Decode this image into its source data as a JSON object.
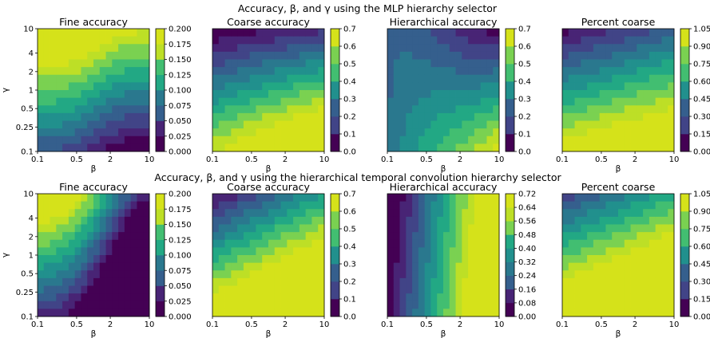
{
  "figure": {
    "row_titles": [
      "Accuracy, β, and γ using the MLP hierarchy selector",
      "Accuracy, β, and γ using the hierarchical temporal convolution hierarchy selector"
    ]
  },
  "colormap": [
    "#440154",
    "#482475",
    "#414487",
    "#355f8d",
    "#2a788e",
    "#21908d",
    "#22a884",
    "#42be71",
    "#7ad151",
    "#bddf26",
    "#d5e21a"
  ],
  "chart_data": [
    {
      "type": "heatmap",
      "row": 0,
      "col": 0,
      "title": "Fine accuracy",
      "xlabel": "β",
      "ylabel": "γ",
      "x_ticks": [
        "0.1",
        "0.5",
        "2",
        "10"
      ],
      "y_ticks": [
        "0.1",
        "0.25",
        "0.5",
        "1",
        "2",
        "4",
        "10"
      ],
      "x_scale": "log",
      "y_scale": "log",
      "xlim": [
        0.1,
        10
      ],
      "ylim": [
        0.1,
        10
      ],
      "colorbar": {
        "min": 0,
        "max": 0.2,
        "ticks": [
          "0.000",
          "0.025",
          "0.050",
          "0.075",
          "0.100",
          "0.125",
          "0.150",
          "0.175",
          "0.200"
        ]
      },
      "z_levels": [
        0.2,
        0.2,
        0.19,
        0.175,
        0.13,
        0.09,
        0.06
      ]
    },
    {
      "type": "heatmap",
      "row": 0,
      "col": 1,
      "title": "Coarse accuracy",
      "xlabel": "β",
      "ylabel": "",
      "x_ticks": [
        "0.1",
        "0.5",
        "2",
        "10"
      ],
      "x_scale": "log",
      "xlim": [
        0.1,
        10
      ],
      "colorbar": {
        "min": 0,
        "max": 0.7,
        "ticks": [
          "0.0",
          "0.1",
          "0.2",
          "0.3",
          "0.4",
          "0.5",
          "0.6",
          "0.7"
        ]
      }
    },
    {
      "type": "heatmap",
      "row": 0,
      "col": 2,
      "title": "Hierarchical accuracy",
      "xlabel": "β",
      "ylabel": "",
      "x_ticks": [
        "0.1",
        "0.5",
        "2",
        "10"
      ],
      "x_scale": "log",
      "xlim": [
        0.1,
        10
      ],
      "colorbar": {
        "min": 0,
        "max": 0.7,
        "ticks": [
          "0.0",
          "0.1",
          "0.2",
          "0.3",
          "0.4",
          "0.5",
          "0.6",
          "0.7"
        ]
      }
    },
    {
      "type": "heatmap",
      "row": 0,
      "col": 3,
      "title": "Percent coarse",
      "xlabel": "β",
      "ylabel": "",
      "x_ticks": [
        "0.1",
        "0.5",
        "2",
        "10"
      ],
      "x_scale": "log",
      "xlim": [
        0.1,
        10
      ],
      "colorbar": {
        "min": 0,
        "max": 1.05,
        "ticks": [
          "0.00",
          "0.15",
          "0.30",
          "0.45",
          "0.60",
          "0.75",
          "0.90",
          "1.05"
        ]
      }
    },
    {
      "type": "heatmap",
      "row": 1,
      "col": 0,
      "title": "Fine accuracy",
      "xlabel": "β",
      "ylabel": "γ",
      "x_ticks": [
        "0.1",
        "0.5",
        "2",
        "10"
      ],
      "y_ticks": [
        "0.1",
        "0.25",
        "0.5",
        "1",
        "2",
        "4",
        "10"
      ],
      "x_scale": "log",
      "y_scale": "log",
      "xlim": [
        0.1,
        10
      ],
      "ylim": [
        0.1,
        10
      ],
      "colorbar": {
        "min": 0,
        "max": 0.2,
        "ticks": [
          "0.000",
          "0.025",
          "0.050",
          "0.075",
          "0.100",
          "0.125",
          "0.150",
          "0.175",
          "0.200"
        ]
      }
    },
    {
      "type": "heatmap",
      "row": 1,
      "col": 1,
      "title": "Coarse accuracy",
      "xlabel": "β",
      "ylabel": "",
      "x_ticks": [
        "0.1",
        "0.5",
        "2",
        "10"
      ],
      "x_scale": "log",
      "xlim": [
        0.1,
        10
      ],
      "colorbar": {
        "min": 0,
        "max": 0.7,
        "ticks": [
          "0.0",
          "0.1",
          "0.2",
          "0.3",
          "0.4",
          "0.5",
          "0.6",
          "0.7"
        ]
      }
    },
    {
      "type": "heatmap",
      "row": 1,
      "col": 2,
      "title": "Hierarchical accuracy",
      "xlabel": "β",
      "ylabel": "",
      "x_ticks": [
        "0.1",
        "0.5",
        "2",
        "10"
      ],
      "x_scale": "log",
      "xlim": [
        0.1,
        10
      ],
      "colorbar": {
        "min": 0,
        "max": 0.72,
        "ticks": [
          "0.00",
          "0.08",
          "0.16",
          "0.24",
          "0.32",
          "0.40",
          "0.48",
          "0.56",
          "0.64",
          "0.72"
        ]
      }
    },
    {
      "type": "heatmap",
      "row": 1,
      "col": 3,
      "title": "Percent coarse",
      "xlabel": "β",
      "ylabel": "",
      "x_ticks": [
        "0.1",
        "0.5",
        "2",
        "10"
      ],
      "x_scale": "log",
      "xlim": [
        0.1,
        10
      ],
      "colorbar": {
        "min": 0,
        "max": 1.05,
        "ticks": [
          "0.00",
          "0.15",
          "0.30",
          "0.45",
          "0.60",
          "0.75",
          "0.90",
          "1.05"
        ]
      }
    }
  ]
}
